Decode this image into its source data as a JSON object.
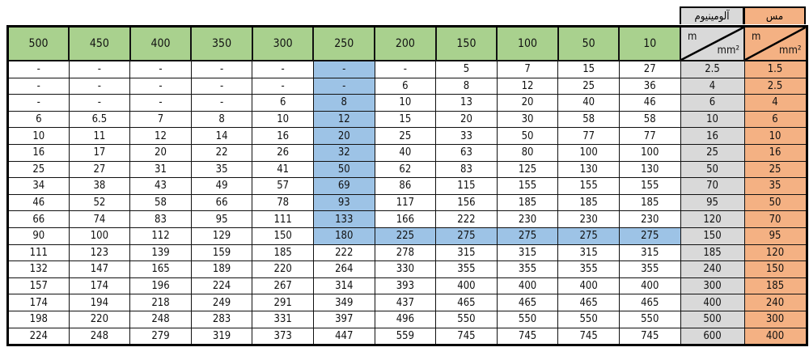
{
  "material_labels": {
    "aluminum": "آلومينيوم",
    "copper": "مس"
  },
  "diagonal_header": {
    "top": "m",
    "bottom": "mm²"
  },
  "length_headers": [
    "500",
    "450",
    "400",
    "350",
    "300",
    "250",
    "200",
    "150",
    "100",
    "50",
    "10"
  ],
  "rows": [
    {
      "values": [
        "-",
        "-",
        "-",
        "-",
        "-",
        "-",
        "-",
        "5",
        "7",
        "15",
        "27"
      ],
      "aluminum": "2.5",
      "copper": "1.5"
    },
    {
      "values": [
        "-",
        "-",
        "-",
        "-",
        "-",
        "-",
        "6",
        "8",
        "12",
        "25",
        "36"
      ],
      "aluminum": "4",
      "copper": "2.5"
    },
    {
      "values": [
        "-",
        "-",
        "-",
        "-",
        "6",
        "8",
        "10",
        "13",
        "20",
        "40",
        "46"
      ],
      "aluminum": "6",
      "copper": "4"
    },
    {
      "values": [
        "6",
        "6.5",
        "7",
        "8",
        "10",
        "12",
        "15",
        "20",
        "30",
        "58",
        "58"
      ],
      "aluminum": "10",
      "copper": "6"
    },
    {
      "values": [
        "10",
        "11",
        "12",
        "14",
        "16",
        "20",
        "25",
        "33",
        "50",
        "77",
        "77"
      ],
      "aluminum": "16",
      "copper": "10"
    },
    {
      "values": [
        "16",
        "17",
        "20",
        "22",
        "26",
        "32",
        "40",
        "63",
        "80",
        "100",
        "100"
      ],
      "aluminum": "25",
      "copper": "16"
    },
    {
      "values": [
        "25",
        "27",
        "31",
        "35",
        "41",
        "50",
        "62",
        "83",
        "125",
        "130",
        "130"
      ],
      "aluminum": "50",
      "copper": "25"
    },
    {
      "values": [
        "34",
        "38",
        "43",
        "49",
        "57",
        "69",
        "86",
        "115",
        "155",
        "155",
        "155"
      ],
      "aluminum": "70",
      "copper": "35"
    },
    {
      "values": [
        "46",
        "52",
        "58",
        "66",
        "78",
        "93",
        "117",
        "156",
        "185",
        "185",
        "185"
      ],
      "aluminum": "95",
      "copper": "50"
    },
    {
      "values": [
        "66",
        "74",
        "83",
        "95",
        "111",
        "133",
        "166",
        "222",
        "230",
        "230",
        "230"
      ],
      "aluminum": "120",
      "copper": "70"
    },
    {
      "values": [
        "90",
        "100",
        "112",
        "129",
        "150",
        "180",
        "225",
        "275",
        "275",
        "275",
        "275"
      ],
      "aluminum": "150",
      "copper": "95"
    },
    {
      "values": [
        "111",
        "123",
        "139",
        "159",
        "185",
        "222",
        "278",
        "315",
        "315",
        "315",
        "315"
      ],
      "aluminum": "185",
      "copper": "120"
    },
    {
      "values": [
        "132",
        "147",
        "165",
        "189",
        "220",
        "264",
        "330",
        "355",
        "355",
        "355",
        "355"
      ],
      "aluminum": "240",
      "copper": "150"
    },
    {
      "values": [
        "157",
        "174",
        "196",
        "224",
        "267",
        "314",
        "393",
        "400",
        "400",
        "400",
        "400"
      ],
      "aluminum": "300",
      "copper": "185"
    },
    {
      "values": [
        "174",
        "194",
        "218",
        "249",
        "291",
        "349",
        "437",
        "465",
        "465",
        "465",
        "465"
      ],
      "aluminum": "400",
      "copper": "240"
    },
    {
      "values": [
        "198",
        "220",
        "248",
        "283",
        "331",
        "397",
        "496",
        "550",
        "550",
        "550",
        "550"
      ],
      "aluminum": "500",
      "copper": "300"
    },
    {
      "values": [
        "224",
        "248",
        "279",
        "319",
        "373",
        "447",
        "559",
        "745",
        "745",
        "745",
        "745"
      ],
      "aluminum": "600",
      "copper": "400"
    }
  ],
  "highlight": {
    "color": "#9dc3e6",
    "column": "250",
    "column_through_row": 10,
    "row": 10,
    "row_from_column": "250"
  },
  "colors": {
    "header": "#a9d18e",
    "aluminum": "#d9d9d9",
    "copper": "#f4b183",
    "highlight": "#9dc3e6"
  }
}
